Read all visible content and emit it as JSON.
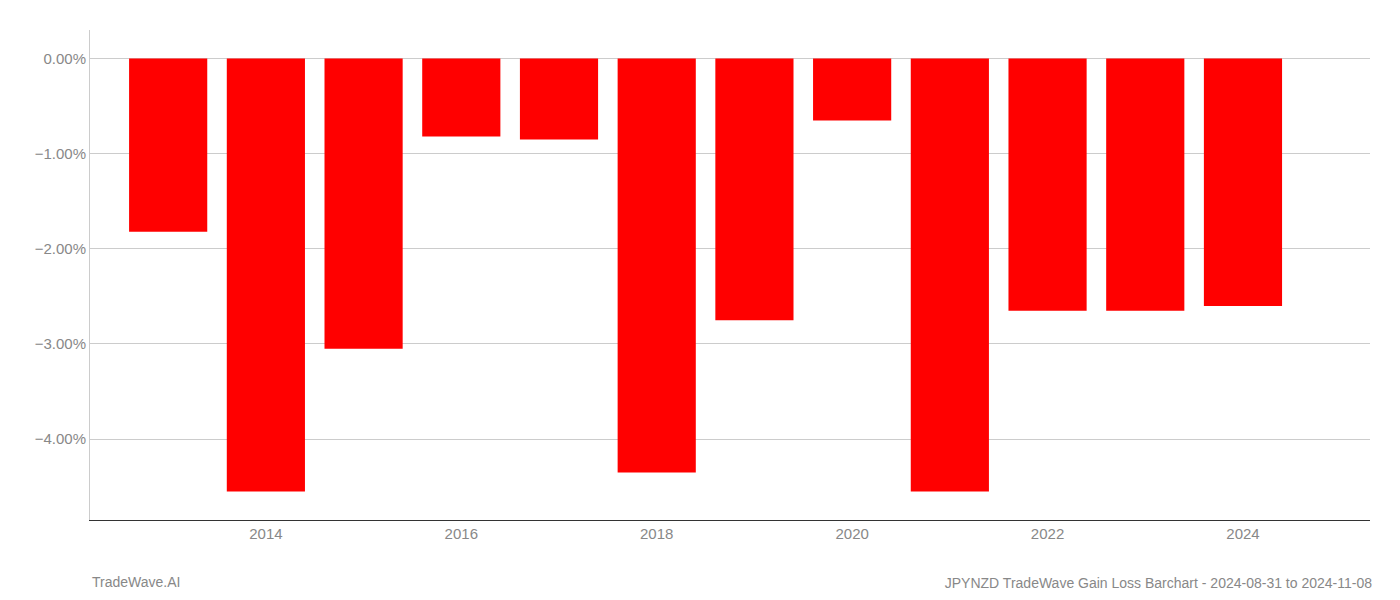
{
  "chart_data": {
    "type": "bar",
    "title": "JPYNZD TradeWave Gain Loss Barchart - 2024-08-31 to 2024-11-08",
    "annotations": [
      "TradeWave.AI"
    ],
    "x": [
      2013,
      2014,
      2015,
      2016,
      2017,
      2018,
      2019,
      2020,
      2021,
      2022,
      2023,
      2024
    ],
    "values": [
      -1.82,
      -4.55,
      -3.05,
      -0.82,
      -0.85,
      -4.35,
      -2.75,
      -0.65,
      -4.55,
      -2.65,
      -2.65,
      -2.6
    ],
    "color": "#ff0000",
    "xlim": [
      2012.2,
      2025.3
    ],
    "xticks": [
      2014,
      2016,
      2018,
      2020,
      2022,
      2024
    ],
    "ylim": [
      -4.85,
      0.3
    ],
    "yticks": [
      {
        "value": 0.0,
        "label": "0.00%"
      },
      {
        "value": -1.0,
        "label": "−1.00%"
      },
      {
        "value": -2.0,
        "label": "−2.00%"
      },
      {
        "value": -3.0,
        "label": "−3.00%"
      },
      {
        "value": -4.0,
        "label": "−4.00%"
      }
    ],
    "grid": true
  }
}
